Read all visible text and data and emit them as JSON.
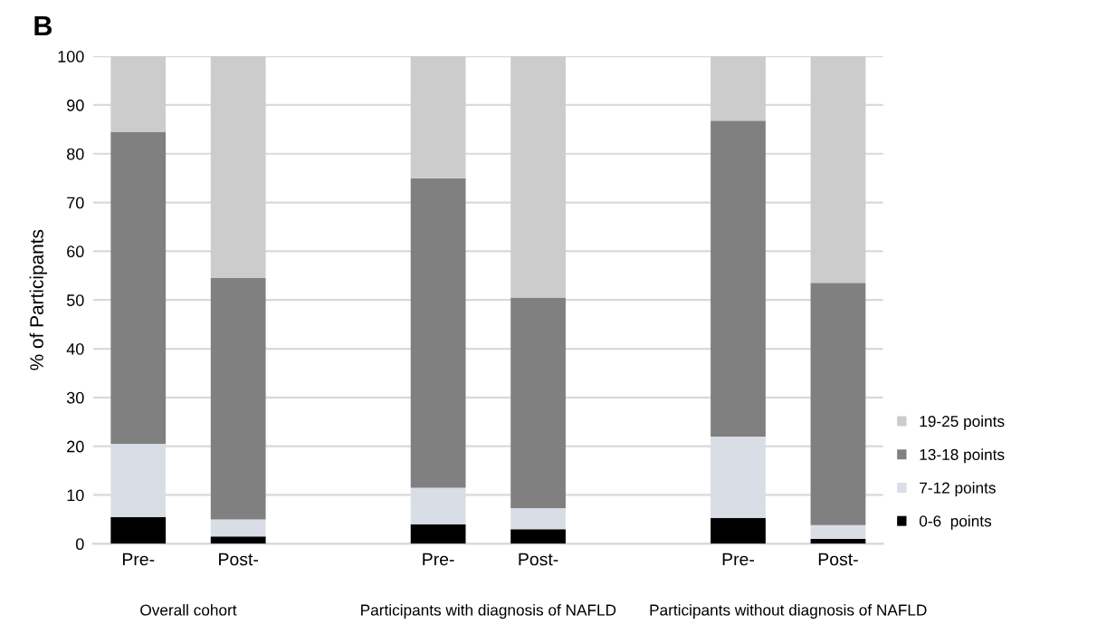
{
  "chart_data": {
    "type": "bar",
    "stacked": true,
    "title": "B",
    "ylabel": "% of Participants",
    "categories": [
      "Pre-",
      "Post-",
      null,
      "Pre-",
      "Post-",
      null,
      "Pre-",
      "Post-"
    ],
    "series": [
      {
        "name": "0-6  points",
        "color": "#000000",
        "values": [
          5.5,
          1.5,
          null,
          4,
          3,
          null,
          5.3,
          1
        ]
      },
      {
        "name": "7-12 points",
        "color": "#d9dde6",
        "values": [
          15,
          3.5,
          null,
          7.5,
          4.3,
          null,
          16.7,
          2.8
        ]
      },
      {
        "name": "13-18 points",
        "color": "#808080",
        "values": [
          64,
          49.5,
          null,
          63.5,
          43.2,
          null,
          64.8,
          49.7
        ]
      },
      {
        "name": "19-25 points",
        "color": "#cccccc",
        "values": [
          15.5,
          45.5,
          null,
          25,
          49.5,
          null,
          13.2,
          46.5
        ]
      }
    ],
    "annotations": [
      "Overall cohort",
      "Participants with diagnosis of NAFLD",
      "Participants without diagnosis of NAFLD"
    ],
    "ylim": [
      0,
      100
    ],
    "yticks": [
      0,
      10,
      20,
      30,
      40,
      50,
      60,
      70,
      80,
      90,
      100
    ],
    "grid": "y",
    "legend": "right"
  }
}
